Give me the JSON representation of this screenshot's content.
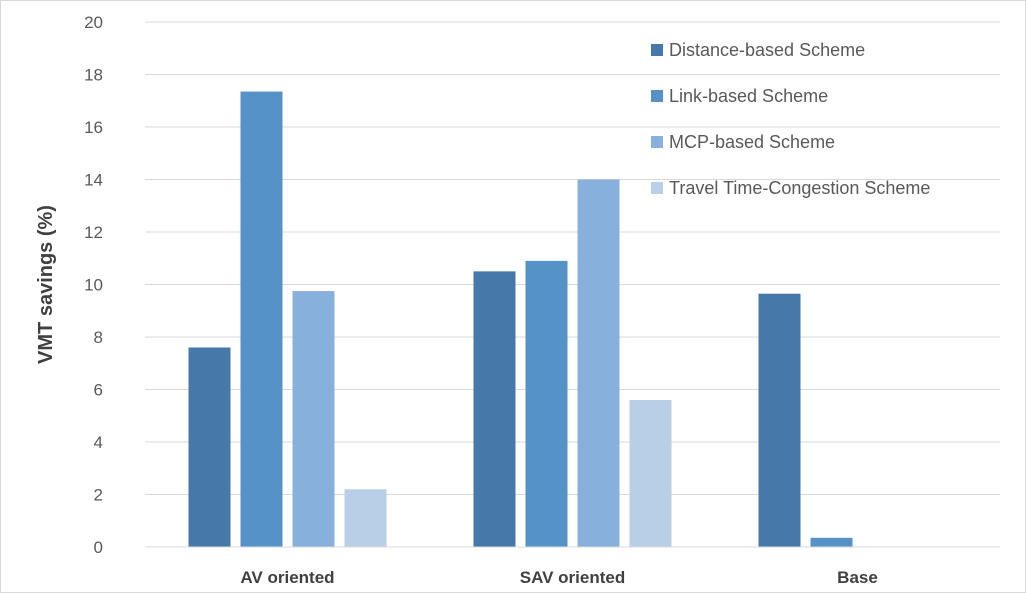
{
  "chart_data": {
    "type": "bar",
    "title": "",
    "xlabel": "",
    "ylabel": "VMT savings (%)",
    "ylim": [
      0,
      20
    ],
    "yticks": [
      0,
      2,
      4,
      6,
      8,
      10,
      12,
      14,
      16,
      18,
      20
    ],
    "grid": true,
    "legend_position": "top-right",
    "categories": [
      "AV oriented",
      "SAV oriented",
      "Base"
    ],
    "series": [
      {
        "name": "Distance-based Scheme",
        "color": "#4679aa",
        "values": [
          7.6,
          10.5,
          9.65
        ]
      },
      {
        "name": "Link-based Scheme",
        "color": "#5592c8",
        "values": [
          17.35,
          10.9,
          0.35
        ]
      },
      {
        "name": "MCP-based Scheme",
        "color": "#88b0dc",
        "values": [
          9.75,
          14.0,
          0
        ]
      },
      {
        "name": "Travel Time-Congestion Scheme",
        "color": "#b9cfe8",
        "values": [
          2.2,
          5.6,
          0
        ]
      }
    ]
  }
}
